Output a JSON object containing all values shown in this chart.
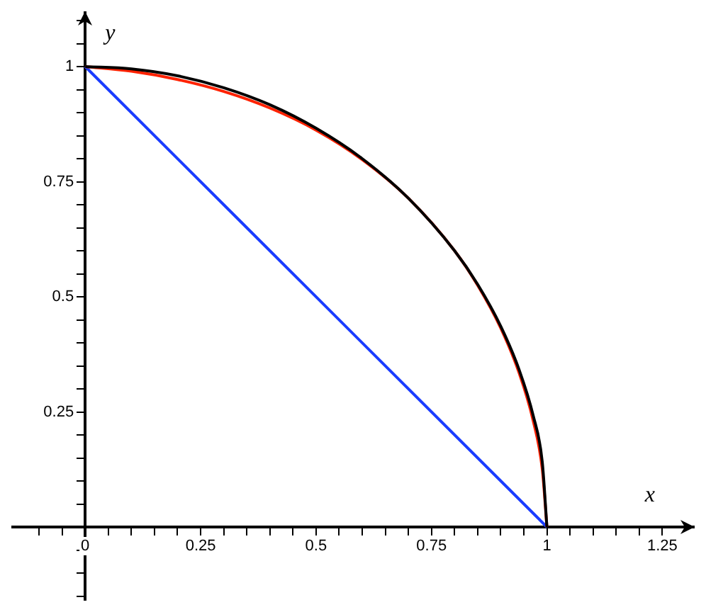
{
  "chart_data": {
    "type": "line",
    "xlabel": "x",
    "ylabel": "y",
    "xlim": [
      -0.16,
      1.32
    ],
    "ylim": [
      -0.16,
      1.12
    ],
    "xticks": [
      {
        "value": -0.1,
        "label": null
      },
      {
        "value": -0.05,
        "label": null
      },
      0,
      {
        "value": 0.05,
        "label": null
      },
      {
        "value": 0.1,
        "label": null
      },
      {
        "value": 0.15,
        "label": null
      },
      {
        "value": 0.2,
        "label": null
      },
      0.25,
      {
        "value": 0.3,
        "label": null
      },
      {
        "value": 0.35,
        "label": null
      },
      {
        "value": 0.4,
        "label": null
      },
      {
        "value": 0.45,
        "label": null
      },
      0.5,
      {
        "value": 0.55,
        "label": null
      },
      {
        "value": 0.6,
        "label": null
      },
      {
        "value": 0.65,
        "label": null
      },
      {
        "value": 0.7,
        "label": null
      },
      0.75,
      {
        "value": 0.8,
        "label": null
      },
      {
        "value": 0.85,
        "label": null
      },
      {
        "value": 0.9,
        "label": null
      },
      {
        "value": 0.95,
        "label": null
      },
      1,
      {
        "value": 1.05,
        "label": null
      },
      {
        "value": 1.1,
        "label": null
      },
      {
        "value": 1.15,
        "label": null
      },
      {
        "value": 1.2,
        "label": null
      },
      1.25
    ],
    "yticks": [
      {
        "value": -0.15,
        "label": null
      },
      {
        "value": -0.1,
        "label": null
      },
      {
        "value": -0.05,
        "label": null
      },
      {
        "value": 0,
        "label": null
      },
      {
        "value": 0.05,
        "label": null
      },
      {
        "value": 0.1,
        "label": null
      },
      {
        "value": 0.15,
        "label": null
      },
      {
        "value": 0.2,
        "label": null
      },
      0.25,
      {
        "value": 0.3,
        "label": null
      },
      {
        "value": 0.35,
        "label": null
      },
      {
        "value": 0.4,
        "label": null
      },
      {
        "value": 0.45,
        "label": null
      },
      0.5,
      {
        "value": 0.55,
        "label": null
      },
      {
        "value": 0.6,
        "label": null
      },
      {
        "value": 0.65,
        "label": null
      },
      {
        "value": 0.7,
        "label": null
      },
      0.75,
      {
        "value": 0.8,
        "label": null
      },
      {
        "value": 0.85,
        "label": null
      },
      {
        "value": 0.9,
        "label": null
      },
      {
        "value": 0.95,
        "label": null
      },
      1,
      {
        "value": 1.05,
        "label": null
      },
      {
        "value": 1.1,
        "label": null
      }
    ],
    "grid": false,
    "series": [
      {
        "color": "#000000",
        "x": [
          0,
          0.1,
          0.2,
          0.3,
          0.4,
          0.5,
          0.6,
          0.7,
          0.8,
          0.85,
          0.9,
          0.94,
          0.97,
          0.99,
          1
        ],
        "values": [
          1,
          0.995,
          0.98,
          0.954,
          0.917,
          0.866,
          0.8,
          0.714,
          0.6,
          0.527,
          0.436,
          0.341,
          0.243,
          0.141,
          0
        ]
      },
      {
        "color": "#ff2200",
        "x": [
          0,
          0.1,
          0.2,
          0.3,
          0.4,
          0.5,
          0.6,
          0.7,
          0.8,
          0.85,
          0.9,
          0.94,
          0.97,
          0.99,
          1
        ],
        "values": [
          1,
          0.99,
          0.972,
          0.946,
          0.91,
          0.862,
          0.798,
          0.714,
          0.6,
          0.525,
          0.432,
          0.334,
          0.232,
          0.125,
          0
        ]
      },
      {
        "color": "#1a3cff",
        "x": [
          0,
          1
        ],
        "values": [
          1,
          0
        ]
      }
    ]
  }
}
